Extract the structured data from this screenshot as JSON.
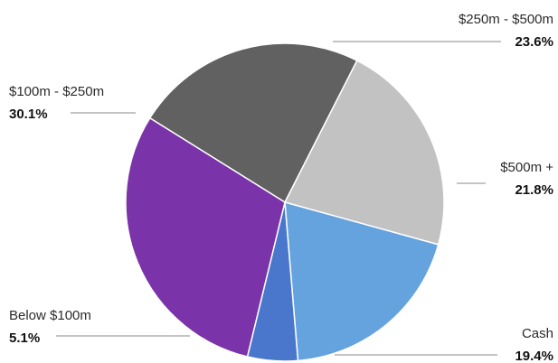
{
  "chart_data": {
    "type": "pie",
    "title": "",
    "slices": [
      {
        "label": "$250m - $500m",
        "value": 23.6,
        "display": "23.6%",
        "color": "#616161"
      },
      {
        "label": "$500m +",
        "value": 21.8,
        "display": "21.8%",
        "color": "#c2c2c2"
      },
      {
        "label": "Cash",
        "value": 19.4,
        "display": "19.4%",
        "color": "#64a3dd"
      },
      {
        "label": "Below $100m",
        "value": 5.1,
        "display": "5.1%",
        "color": "#4a77cc"
      },
      {
        "label": "$100m - $250m",
        "value": 30.1,
        "display": "30.1%",
        "color": "#7a33a8"
      }
    ],
    "legend": "none",
    "labels": "outside with leader lines"
  }
}
